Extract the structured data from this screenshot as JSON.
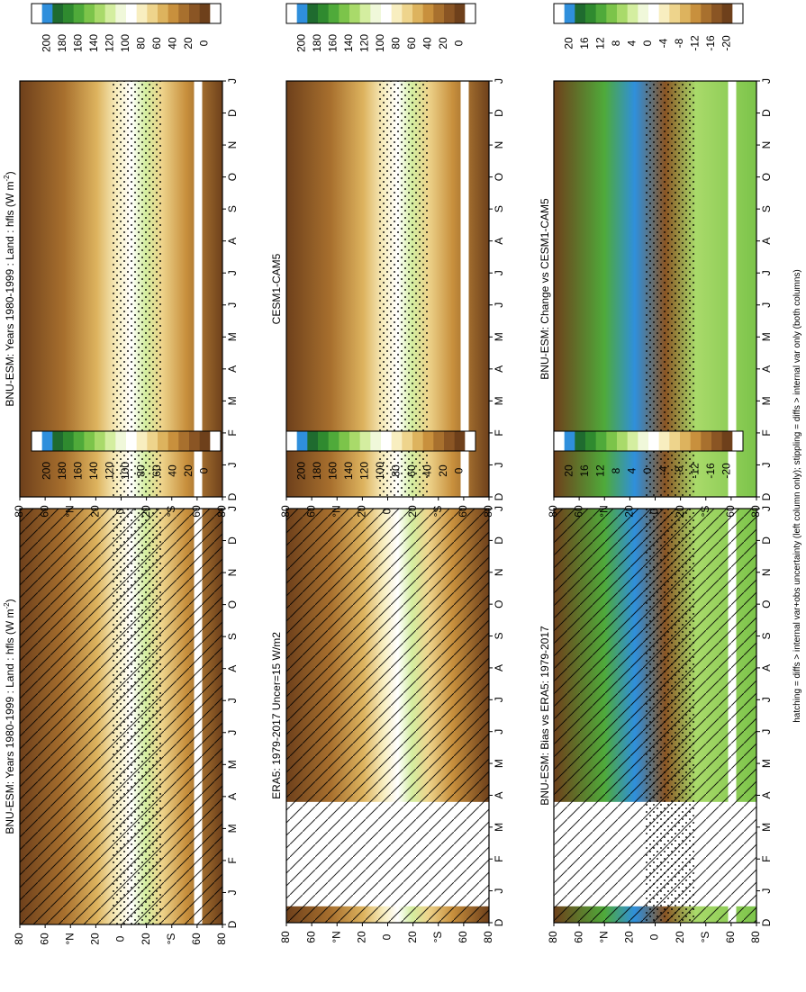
{
  "figure": {
    "footnote": "hatching = diffs > internal var+obs uncertainty (left column only); stippling = diffs > internal var only (both columns)"
  },
  "colorbars": {
    "absolute": {
      "ticks": [
        "200",
        "180",
        "160",
        "140",
        "120",
        "100",
        "80",
        "60",
        "40",
        "20",
        "0"
      ],
      "colors": [
        "#ffffff",
        "#2f8fdc",
        "#1f6b2f",
        "#2f8a2f",
        "#4faa3a",
        "#7cc44a",
        "#a9da6a",
        "#d4eea0",
        "#f0f8da",
        "#ffffff",
        "#f8eec0",
        "#eed48c",
        "#ddb35e",
        "#c8903d",
        "#a8702e",
        "#8a5524",
        "#6e401b",
        "#ffffff"
      ]
    },
    "difference": {
      "ticks": [
        "20",
        "16",
        "12",
        "8",
        "4",
        "0",
        "-4",
        "-8",
        "-12",
        "-16",
        "-20"
      ],
      "colors": [
        "#ffffff",
        "#2f8fdc",
        "#1f6b2f",
        "#2f8a2f",
        "#4faa3a",
        "#7cc44a",
        "#a9da6a",
        "#d4eea0",
        "#f0f8da",
        "#ffffff",
        "#f8eec0",
        "#eed48c",
        "#ddb35e",
        "#c8903d",
        "#a8702e",
        "#8a5524",
        "#6e401b",
        "#ffffff"
      ]
    }
  },
  "chart_data": [
    {
      "type": "heatmap",
      "panel": "left-top",
      "title": "BNU-ESM: Years 1980-1999 : Land : hfls (W m",
      "title_sup": "-2",
      "title_tail": ")",
      "x": [
        "J",
        "F",
        "M",
        "A",
        "M",
        "J",
        "J",
        "A",
        "S",
        "O",
        "N",
        "D",
        "J"
      ],
      "y_ticks": [
        "80",
        "60",
        "°N",
        "20",
        "0",
        "20",
        "°S",
        "60",
        "80"
      ],
      "y_start_label": "D",
      "colorbar": "absolute",
      "hatching": true,
      "stippling": true,
      "missing_months": [],
      "missing_lat_band": true
    },
    {
      "type": "heatmap",
      "panel": "right-top",
      "title": "BNU-ESM: Years 1980-1999 : Land : hfls (W m",
      "title_sup": "-2",
      "title_tail": ")",
      "x": [
        "J",
        "F",
        "M",
        "A",
        "M",
        "J",
        "J",
        "A",
        "S",
        "O",
        "N",
        "D",
        "J"
      ],
      "y_ticks": [
        "80",
        "60",
        "°N",
        "20",
        "0",
        "20",
        "°S",
        "60",
        "80"
      ],
      "y_start_label": "D",
      "colorbar": "absolute",
      "hatching": false,
      "stippling": true,
      "missing_months": [],
      "missing_lat_band": true
    },
    {
      "type": "heatmap",
      "panel": "left-middle",
      "title": "ERA5: 1979-2017 Uncer=15 W/m2",
      "title_sup": "",
      "title_tail": "",
      "x": [
        "J",
        "F",
        "M",
        "A",
        "M",
        "J",
        "J",
        "A",
        "S",
        "O",
        "N",
        "D",
        "J"
      ],
      "y_ticks": [
        "80",
        "60",
        "°N",
        "20",
        "0",
        "20",
        "°S",
        "60",
        "80"
      ],
      "y_start_label": "D",
      "colorbar": "absolute",
      "hatching": true,
      "stippling": false,
      "missing_months": [
        "F",
        "M",
        "A"
      ],
      "missing_lat_band": false
    },
    {
      "type": "heatmap",
      "panel": "right-middle",
      "title": "CESM1-CAM5",
      "title_sup": "",
      "title_tail": "",
      "x": [
        "J",
        "F",
        "M",
        "A",
        "M",
        "J",
        "J",
        "A",
        "S",
        "O",
        "N",
        "D",
        "J"
      ],
      "y_ticks": [
        "80",
        "60",
        "°N",
        "20",
        "0",
        "20",
        "°S",
        "60",
        "80"
      ],
      "y_start_label": "D",
      "colorbar": "absolute",
      "hatching": false,
      "stippling": true,
      "missing_months": [],
      "missing_lat_band": true
    },
    {
      "type": "heatmap",
      "panel": "left-bottom",
      "title": "BNU-ESM: Bias vs ERA5: 1979-2017",
      "title_sup": "",
      "title_tail": "",
      "x": [
        "J",
        "F",
        "M",
        "A",
        "M",
        "J",
        "J",
        "A",
        "S",
        "O",
        "N",
        "D",
        "J"
      ],
      "y_ticks": [
        "80",
        "60",
        "°N",
        "20",
        "0",
        "20",
        "°S",
        "60",
        "80"
      ],
      "y_start_label": "D",
      "colorbar": "difference",
      "hatching": true,
      "stippling": true,
      "missing_months": [
        "F",
        "M",
        "A"
      ],
      "missing_lat_band": true
    },
    {
      "type": "heatmap",
      "panel": "right-bottom",
      "title": "BNU-ESM: Change vs CESM1-CAM5",
      "title_sup": "",
      "title_tail": "",
      "x": [
        "J",
        "F",
        "M",
        "A",
        "M",
        "J",
        "J",
        "A",
        "S",
        "O",
        "N",
        "D",
        "J"
      ],
      "y_ticks": [
        "80",
        "60",
        "°N",
        "20",
        "0",
        "20",
        "°S",
        "60",
        "80"
      ],
      "y_start_label": "D",
      "colorbar": "difference",
      "hatching": false,
      "stippling": true,
      "missing_months": [],
      "missing_lat_band": true
    }
  ]
}
